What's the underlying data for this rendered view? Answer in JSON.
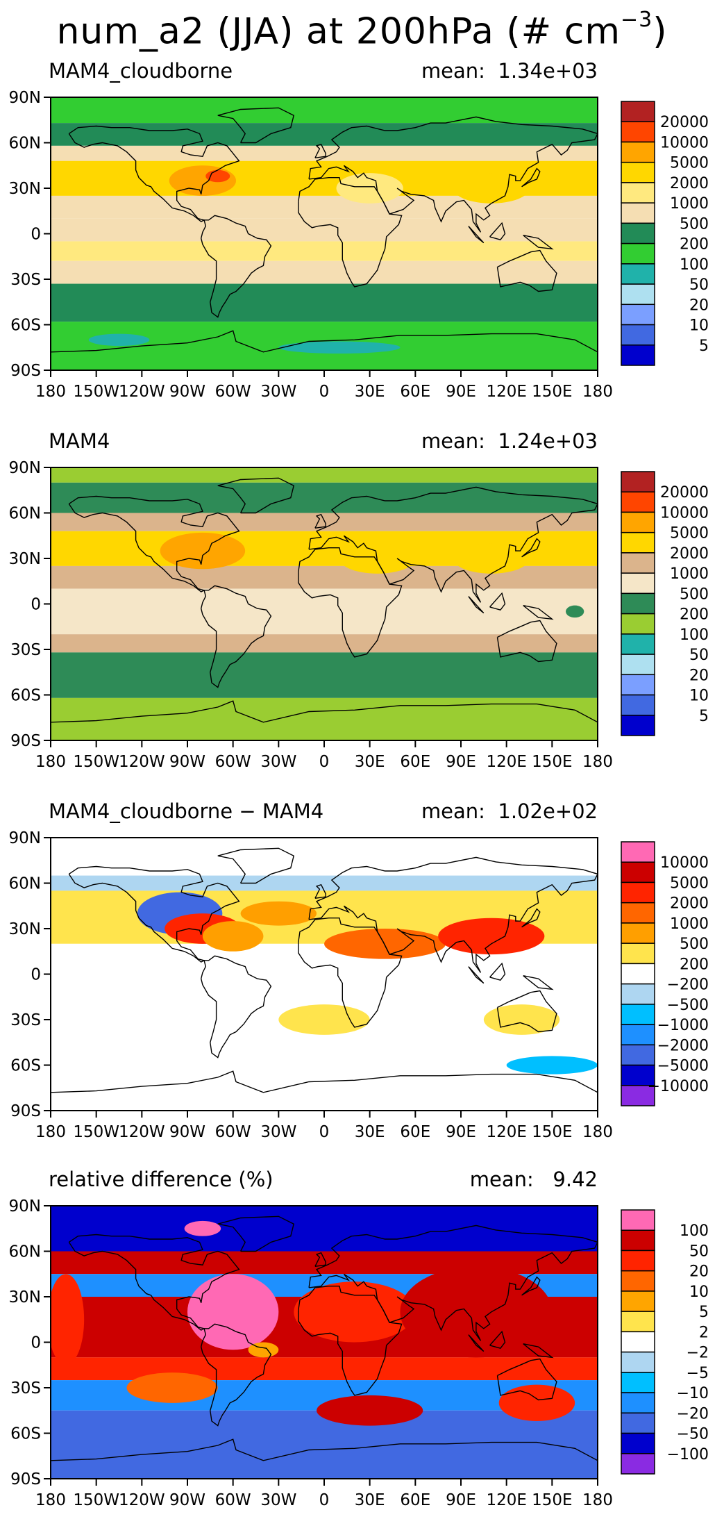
{
  "title": {
    "text": "num_a2 (JJA) at 200hPa (# cm",
    "sup": "−3",
    "close": ")"
  },
  "axes": {
    "lat_labels": [
      "90N",
      "60N",
      "30N",
      "0",
      "30S",
      "60S",
      "90S"
    ],
    "lon_labels": [
      "180",
      "150W",
      "120W",
      "90W",
      "60W",
      "30W",
      "0",
      "30E",
      "60E",
      "90E",
      "120E",
      "150E",
      "180"
    ]
  },
  "panels": [
    {
      "label": "MAM4_cloudborne",
      "mean": "mean:  1.34e+03",
      "colorbar": {
        "colors": [
          "#b22222",
          "#ff4500",
          "#ffa500",
          "#ffd700",
          "#ffe97f",
          "#f5deb3",
          "#228b57",
          "#32cd32",
          "#20b2aa",
          "#aee0f0",
          "#7b9fff",
          "#4169e1",
          "#0000cd"
        ],
        "labels": [
          "20000",
          "10000",
          "5000",
          "2000",
          "1000",
          "500",
          "200",
          "100",
          "50",
          "20",
          "10",
          "5"
        ]
      }
    },
    {
      "label": "MAM4",
      "mean": "mean:  1.24e+03",
      "colorbar": {
        "colors": [
          "#b22222",
          "#ff4500",
          "#ffa500",
          "#ffd700",
          "#dbb48c",
          "#f5e6c8",
          "#2e8b57",
          "#9acd32",
          "#20b2aa",
          "#aee0f0",
          "#7b9fff",
          "#4169e1",
          "#0000cd"
        ],
        "labels": [
          "20000",
          "10000",
          "5000",
          "2000",
          "1000",
          "500",
          "200",
          "100",
          "50",
          "20",
          "10",
          "5"
        ]
      }
    },
    {
      "label": "MAM4_cloudborne − MAM4",
      "mean": "mean:  1.02e+02",
      "colorbar": {
        "colors": [
          "#ff69b4",
          "#cc0000",
          "#ff2400",
          "#ff6600",
          "#ff9f00",
          "#ffe44d",
          "#ffffff",
          "#aed6f1",
          "#00bfff",
          "#1e90ff",
          "#4169e1",
          "#0000cd",
          "#8a2be2"
        ],
        "labels": [
          "10000",
          "5000",
          "2000",
          "1000",
          "500",
          "200",
          "−200",
          "−500",
          "−1000",
          "−2000",
          "−5000",
          "−10000"
        ]
      }
    },
    {
      "label": "relative difference (%)",
      "mean": "mean:   9.42",
      "colorbar": {
        "colors": [
          "#ff69b4",
          "#cc0000",
          "#ff2400",
          "#ff6600",
          "#ffa500",
          "#ffe44d",
          "#ffffff",
          "#aed6f1",
          "#00bfff",
          "#1e90ff",
          "#4169e1",
          "#0000cd",
          "#8a2be2"
        ],
        "labels": [
          "100",
          "50",
          "20",
          "10",
          "5",
          "2",
          "−2",
          "−5",
          "−10",
          "−20",
          "−50",
          "−100"
        ]
      }
    }
  ]
}
